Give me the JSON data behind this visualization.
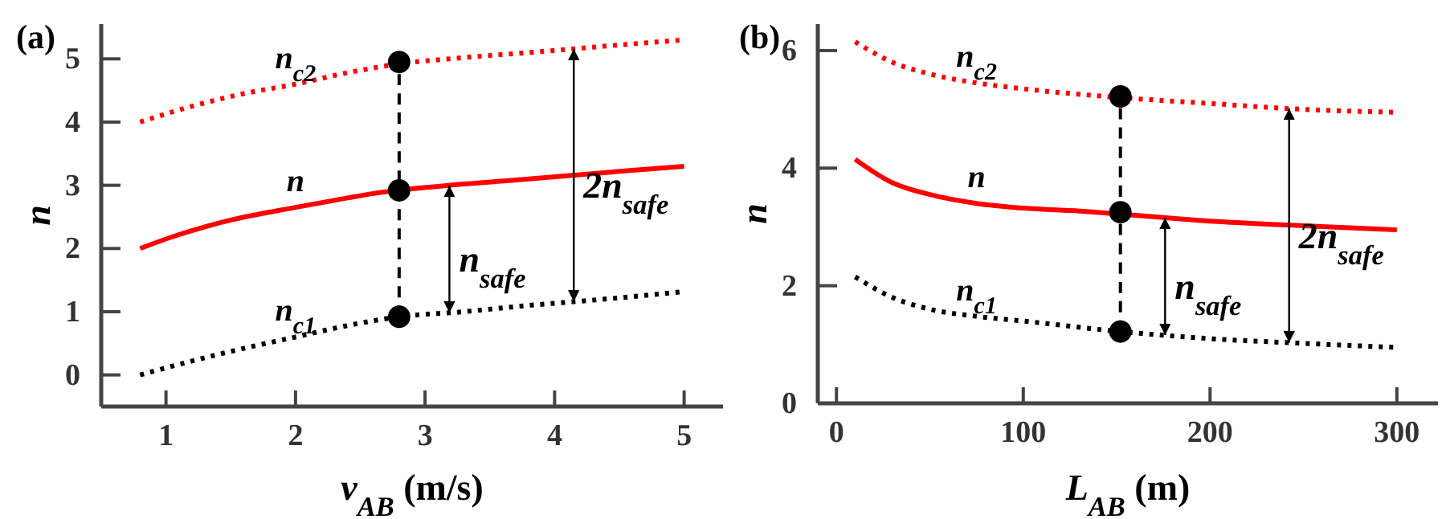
{
  "chart_data": [
    {
      "type": "line",
      "title": "(a)",
      "xlabel": "v$_{AB}$ (m/s)",
      "ylabel": "n",
      "xlim": [
        0.5,
        5.3
      ],
      "ylim": [
        -0.5,
        5.55
      ],
      "xticks": [
        1,
        2,
        3,
        4,
        5
      ],
      "yticks": [
        0,
        1,
        2,
        3,
        4,
        5
      ],
      "grid": false,
      "series": [
        {
          "name": "n$_{c2}$",
          "color": "#ff0000",
          "line_style": "dotted",
          "x": [
            0.8,
            1.2,
            1.6,
            2.0,
            2.4,
            2.8,
            3.3,
            3.8,
            4.1,
            4.5,
            5.0
          ],
          "values": [
            4.0,
            4.25,
            4.45,
            4.6,
            4.78,
            4.92,
            5.02,
            5.1,
            5.15,
            5.22,
            5.3
          ]
        },
        {
          "name": "n",
          "color": "#ff0000",
          "line_style": "solid",
          "x": [
            0.8,
            1.1,
            1.5,
            2.0,
            2.4,
            2.6,
            3.3,
            3.8,
            4.1,
            4.5,
            5.0
          ],
          "values": [
            2.0,
            2.22,
            2.45,
            2.65,
            2.8,
            2.87,
            3.02,
            3.1,
            3.15,
            3.22,
            3.3
          ]
        },
        {
          "name": "n$_{c1}$",
          "color": "#000000",
          "line_style": "dotted",
          "x": [
            0.8,
            1.2,
            1.6,
            2.0,
            2.4,
            2.8,
            3.3,
            3.8,
            4.1,
            4.5,
            5.0
          ],
          "values": [
            0.0,
            0.22,
            0.42,
            0.6,
            0.78,
            0.92,
            1.0,
            1.1,
            1.15,
            1.22,
            1.32
          ]
        },
        {
          "color": "#000000",
          "line_style": "dashed",
          "marker": "circle",
          "x": [
            2.8,
            2.8,
            2.8
          ],
          "values": [
            0.92,
            2.92,
            4.95
          ]
        }
      ],
      "annotations": [
        "n$_{safe}$",
        "2n$_{safe}$"
      ]
    },
    {
      "type": "line",
      "title": "(b)",
      "xlabel": "L$_{AB}$ (m)",
      "ylabel": "n",
      "xlim": [
        -10,
        322
      ],
      "ylim": [
        0,
        6.45
      ],
      "xticks": [
        0,
        100,
        200,
        300
      ],
      "yticks": [
        0,
        2,
        4,
        6
      ],
      "grid": false,
      "series": [
        {
          "name": "n$_{c2}$",
          "color": "#ff0000",
          "line_style": "dotted",
          "x": [
            10,
            30,
            50,
            75,
            100,
            152,
            200,
            250,
            300
          ],
          "values": [
            6.15,
            5.8,
            5.6,
            5.45,
            5.35,
            5.2,
            5.1,
            5.0,
            4.95
          ]
        },
        {
          "name": "n",
          "color": "#ff0000",
          "line_style": "solid",
          "x": [
            10,
            30,
            50,
            75,
            100,
            130,
            200,
            250,
            300
          ],
          "values": [
            4.15,
            3.75,
            3.55,
            3.4,
            3.32,
            3.27,
            3.1,
            3.02,
            2.95
          ]
        },
        {
          "name": "n$_{c1}$",
          "color": "#000000",
          "line_style": "dotted",
          "x": [
            10,
            30,
            50,
            75,
            100,
            152,
            200,
            250,
            300
          ],
          "values": [
            2.15,
            1.8,
            1.6,
            1.48,
            1.4,
            1.22,
            1.1,
            1.02,
            0.95
          ]
        },
        {
          "color": "#000000",
          "line_style": "dashed",
          "marker": "circle",
          "x": [
            152,
            152,
            152
          ],
          "values": [
            1.22,
            3.25,
            5.22
          ]
        }
      ],
      "annotations": [
        "n$_{safe}$",
        "2n$_{safe}$"
      ]
    }
  ]
}
